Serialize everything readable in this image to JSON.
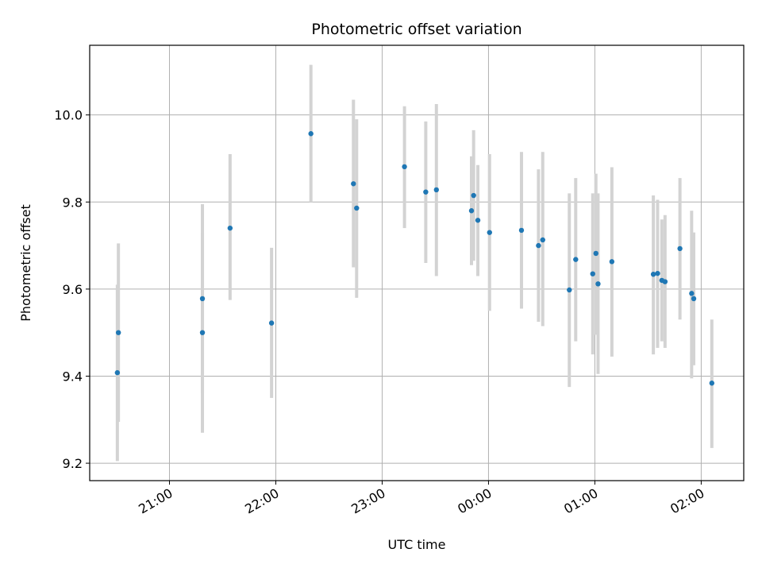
{
  "chart_data": {
    "type": "scatter",
    "title": "Photometric offset variation",
    "xlabel": "UTC time",
    "ylabel": "Photometric offset",
    "x_unit": "hours from 00:00 UTC",
    "xlim": [
      -3.75,
      2.4
    ],
    "ylim": [
      9.16,
      10.16
    ],
    "xticks": [
      {
        "value": -3,
        "label": "21:00"
      },
      {
        "value": -2,
        "label": "22:00"
      },
      {
        "value": -1,
        "label": "23:00"
      },
      {
        "value": 0,
        "label": "00:00"
      },
      {
        "value": 1,
        "label": "01:00"
      },
      {
        "value": 2,
        "label": "02:00"
      }
    ],
    "yticks": [
      {
        "value": 9.2,
        "label": "9.2"
      },
      {
        "value": 9.4,
        "label": "9.4"
      },
      {
        "value": 9.6,
        "label": "9.6"
      },
      {
        "value": 9.8,
        "label": "9.8"
      },
      {
        "value": 10.0,
        "label": "10.0"
      }
    ],
    "grid": true,
    "marker_color": "#1f77b4",
    "errorbar_color": "#d3d3d3",
    "points": [
      {
        "x": -3.49,
        "y": 9.408,
        "lo": 9.205,
        "hi": 9.61
      },
      {
        "x": -3.48,
        "y": 9.5,
        "lo": 9.295,
        "hi": 9.705
      },
      {
        "x": -2.69,
        "y": 9.5,
        "lo": 9.27,
        "hi": 9.73
      },
      {
        "x": -2.69,
        "y": 9.578,
        "lo": 9.36,
        "hi": 9.795
      },
      {
        "x": -2.43,
        "y": 9.74,
        "lo": 9.575,
        "hi": 9.91
      },
      {
        "x": -2.04,
        "y": 9.522,
        "lo": 9.35,
        "hi": 9.695
      },
      {
        "x": -1.67,
        "y": 9.957,
        "lo": 9.8,
        "hi": 10.115
      },
      {
        "x": -1.27,
        "y": 9.842,
        "lo": 9.65,
        "hi": 10.035
      },
      {
        "x": -1.24,
        "y": 9.786,
        "lo": 9.58,
        "hi": 9.99
      },
      {
        "x": -0.79,
        "y": 9.881,
        "lo": 9.74,
        "hi": 10.02
      },
      {
        "x": -0.59,
        "y": 9.823,
        "lo": 9.66,
        "hi": 9.985
      },
      {
        "x": -0.49,
        "y": 9.828,
        "lo": 9.63,
        "hi": 10.025
      },
      {
        "x": -0.16,
        "y": 9.78,
        "lo": 9.655,
        "hi": 9.905
      },
      {
        "x": -0.14,
        "y": 9.815,
        "lo": 9.665,
        "hi": 9.965
      },
      {
        "x": -0.1,
        "y": 9.758,
        "lo": 9.63,
        "hi": 9.885
      },
      {
        "x": 0.01,
        "y": 9.73,
        "lo": 9.55,
        "hi": 9.91
      },
      {
        "x": 0.31,
        "y": 9.735,
        "lo": 9.555,
        "hi": 9.915
      },
      {
        "x": 0.47,
        "y": 9.7,
        "lo": 9.525,
        "hi": 9.875
      },
      {
        "x": 0.51,
        "y": 9.713,
        "lo": 9.515,
        "hi": 9.915
      },
      {
        "x": 0.76,
        "y": 9.598,
        "lo": 9.375,
        "hi": 9.82
      },
      {
        "x": 0.82,
        "y": 9.668,
        "lo": 9.48,
        "hi": 9.855
      },
      {
        "x": 0.98,
        "y": 9.635,
        "lo": 9.45,
        "hi": 9.82
      },
      {
        "x": 1.01,
        "y": 9.682,
        "lo": 9.495,
        "hi": 9.865
      },
      {
        "x": 1.03,
        "y": 9.612,
        "lo": 9.405,
        "hi": 9.82
      },
      {
        "x": 1.16,
        "y": 9.663,
        "lo": 9.445,
        "hi": 9.88
      },
      {
        "x": 1.55,
        "y": 9.634,
        "lo": 9.45,
        "hi": 9.815
      },
      {
        "x": 1.59,
        "y": 9.636,
        "lo": 9.465,
        "hi": 9.805
      },
      {
        "x": 1.63,
        "y": 9.62,
        "lo": 9.48,
        "hi": 9.76
      },
      {
        "x": 1.66,
        "y": 9.617,
        "lo": 9.465,
        "hi": 9.77
      },
      {
        "x": 1.8,
        "y": 9.693,
        "lo": 9.53,
        "hi": 9.855
      },
      {
        "x": 1.91,
        "y": 9.59,
        "lo": 9.395,
        "hi": 9.78
      },
      {
        "x": 1.93,
        "y": 9.578,
        "lo": 9.425,
        "hi": 9.73
      },
      {
        "x": 2.1,
        "y": 9.384,
        "lo": 9.235,
        "hi": 9.53
      }
    ]
  }
}
